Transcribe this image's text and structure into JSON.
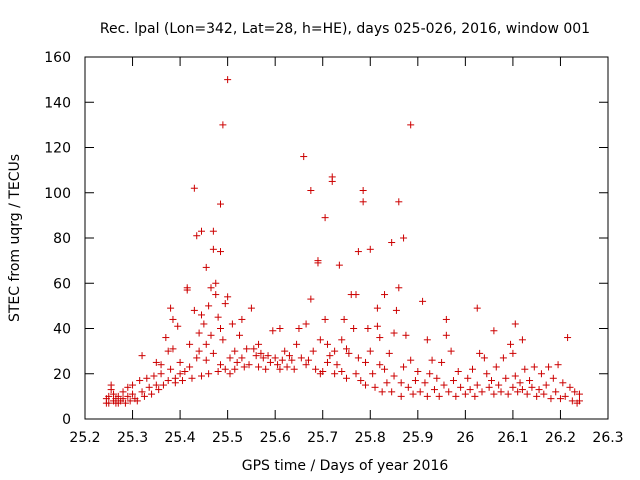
{
  "chart_data": {
    "type": "scatter",
    "title": "Rec. lpal (Lon=342, Lat=28, h=HE), days 025-026, 2016, window 001",
    "xlabel": "GPS time / Days of year 2016",
    "ylabel": "STEC from uqrg / TECUs",
    "xlim": [
      25.2,
      26.3
    ],
    "ylim": [
      0,
      160
    ],
    "xticks": [
      25.2,
      25.3,
      25.4,
      25.5,
      25.6,
      25.7,
      25.8,
      25.9,
      26,
      26.1,
      26.2,
      26.3
    ],
    "xtick_labels": [
      "25.2",
      "25.3",
      "25.4",
      "25.5",
      "25.6",
      "25.7",
      "25.8",
      "25.9",
      "26",
      "26.1",
      "26.2",
      "26.3"
    ],
    "yticks": [
      0,
      20,
      40,
      60,
      80,
      100,
      120,
      140,
      160
    ],
    "ytick_labels": [
      "0",
      "20",
      "40",
      "60",
      "80",
      "100",
      "120",
      "140",
      "160"
    ],
    "grid": false,
    "marker": "+",
    "series": [
      {
        "name": "STEC",
        "color": "#cc0000",
        "points": [
          [
            25.245,
            7
          ],
          [
            25.245,
            9
          ],
          [
            25.25,
            10
          ],
          [
            25.25,
            7
          ],
          [
            25.255,
            13
          ],
          [
            25.255,
            15
          ],
          [
            25.26,
            8
          ],
          [
            25.26,
            11
          ],
          [
            25.265,
            7
          ],
          [
            25.265,
            9
          ],
          [
            25.27,
            10
          ],
          [
            25.27,
            7
          ],
          [
            25.275,
            8
          ],
          [
            25.28,
            12
          ],
          [
            25.28,
            9
          ],
          [
            25.285,
            7
          ],
          [
            25.29,
            14
          ],
          [
            25.29,
            10
          ],
          [
            25.295,
            8
          ],
          [
            25.3,
            15
          ],
          [
            25.3,
            11
          ],
          [
            25.305,
            9
          ],
          [
            25.31,
            8
          ],
          [
            25.315,
            17
          ],
          [
            25.32,
            28
          ],
          [
            25.32,
            12
          ],
          [
            25.325,
            10
          ],
          [
            25.33,
            18
          ],
          [
            25.335,
            14
          ],
          [
            25.34,
            11
          ],
          [
            25.345,
            19
          ],
          [
            25.35,
            25
          ],
          [
            25.35,
            15
          ],
          [
            25.355,
            13
          ],
          [
            25.36,
            24
          ],
          [
            25.36,
            20
          ],
          [
            25.365,
            15
          ],
          [
            25.37,
            36
          ],
          [
            25.375,
            30
          ],
          [
            25.375,
            17
          ],
          [
            25.38,
            49
          ],
          [
            25.38,
            22
          ],
          [
            25.385,
            44
          ],
          [
            25.385,
            31
          ],
          [
            25.39,
            18
          ],
          [
            25.39,
            16
          ],
          [
            25.395,
            41
          ],
          [
            25.4,
            25
          ],
          [
            25.4,
            20
          ],
          [
            25.405,
            17
          ],
          [
            25.41,
            21
          ],
          [
            25.415,
            58
          ],
          [
            25.415,
            57
          ],
          [
            25.42,
            33
          ],
          [
            25.42,
            23
          ],
          [
            25.425,
            18
          ],
          [
            25.43,
            102
          ],
          [
            25.43,
            48
          ],
          [
            25.435,
            81
          ],
          [
            25.435,
            27
          ],
          [
            25.44,
            38
          ],
          [
            25.44,
            30
          ],
          [
            25.445,
            83
          ],
          [
            25.445,
            46
          ],
          [
            25.445,
            19
          ],
          [
            25.45,
            42
          ],
          [
            25.455,
            67
          ],
          [
            25.455,
            33
          ],
          [
            25.455,
            26
          ],
          [
            25.46,
            50
          ],
          [
            25.46,
            20
          ],
          [
            25.465,
            58
          ],
          [
            25.465,
            37
          ],
          [
            25.47,
            75
          ],
          [
            25.47,
            83
          ],
          [
            25.47,
            29
          ],
          [
            25.475,
            60
          ],
          [
            25.475,
            55
          ],
          [
            25.48,
            21
          ],
          [
            25.48,
            45
          ],
          [
            25.485,
            95
          ],
          [
            25.485,
            74
          ],
          [
            25.485,
            40
          ],
          [
            25.485,
            24
          ],
          [
            25.49,
            130
          ],
          [
            25.49,
            35
          ],
          [
            25.495,
            51
          ],
          [
            25.495,
            22
          ],
          [
            25.5,
            150
          ],
          [
            25.5,
            54
          ],
          [
            25.505,
            27
          ],
          [
            25.505,
            20
          ],
          [
            25.51,
            42
          ],
          [
            25.515,
            30
          ],
          [
            25.515,
            22
          ],
          [
            25.52,
            25
          ],
          [
            25.525,
            37
          ],
          [
            25.53,
            44
          ],
          [
            25.53,
            27
          ],
          [
            25.535,
            23
          ],
          [
            25.54,
            31
          ],
          [
            25.545,
            24
          ],
          [
            25.55,
            49
          ],
          [
            25.555,
            31
          ],
          [
            25.56,
            28
          ],
          [
            25.565,
            33
          ],
          [
            25.565,
            23
          ],
          [
            25.57,
            29
          ],
          [
            25.575,
            27
          ],
          [
            25.58,
            22
          ],
          [
            25.585,
            28
          ],
          [
            25.59,
            25
          ],
          [
            25.595,
            39
          ],
          [
            25.6,
            27
          ],
          [
            25.605,
            24
          ],
          [
            25.61,
            40
          ],
          [
            25.61,
            22
          ],
          [
            25.615,
            26
          ],
          [
            25.62,
            30
          ],
          [
            25.625,
            23
          ],
          [
            25.63,
            28
          ],
          [
            25.635,
            26
          ],
          [
            25.64,
            22
          ],
          [
            25.645,
            33
          ],
          [
            25.65,
            40
          ],
          [
            25.655,
            27
          ],
          [
            25.66,
            116
          ],
          [
            25.665,
            42
          ],
          [
            25.665,
            24
          ],
          [
            25.67,
            26
          ],
          [
            25.675,
            101
          ],
          [
            25.675,
            53
          ],
          [
            25.68,
            30
          ],
          [
            25.685,
            22
          ],
          [
            25.69,
            70
          ],
          [
            25.69,
            69
          ],
          [
            25.695,
            35
          ],
          [
            25.695,
            20
          ],
          [
            25.7,
            21
          ],
          [
            25.705,
            89
          ],
          [
            25.705,
            44
          ],
          [
            25.71,
            33
          ],
          [
            25.71,
            25
          ],
          [
            25.715,
            28
          ],
          [
            25.72,
            107
          ],
          [
            25.72,
            105
          ],
          [
            25.725,
            30
          ],
          [
            25.725,
            20
          ],
          [
            25.73,
            24
          ],
          [
            25.735,
            68
          ],
          [
            25.74,
            35
          ],
          [
            25.74,
            21
          ],
          [
            25.745,
            44
          ],
          [
            25.75,
            31
          ],
          [
            25.75,
            18
          ],
          [
            25.755,
            29
          ],
          [
            25.76,
            55
          ],
          [
            25.765,
            40
          ],
          [
            25.77,
            55
          ],
          [
            25.77,
            20
          ],
          [
            25.775,
            74
          ],
          [
            25.775,
            27
          ],
          [
            25.78,
            17
          ],
          [
            25.785,
            101
          ],
          [
            25.785,
            96
          ],
          [
            25.79,
            25
          ],
          [
            25.79,
            15
          ],
          [
            25.795,
            40
          ],
          [
            25.8,
            75
          ],
          [
            25.8,
            30
          ],
          [
            25.805,
            20
          ],
          [
            25.81,
            14
          ],
          [
            25.815,
            49
          ],
          [
            25.815,
            41
          ],
          [
            25.82,
            36
          ],
          [
            25.82,
            24
          ],
          [
            25.825,
            12
          ],
          [
            25.83,
            55
          ],
          [
            25.83,
            22
          ],
          [
            25.835,
            16
          ],
          [
            25.84,
            29
          ],
          [
            25.845,
            78
          ],
          [
            25.845,
            12
          ],
          [
            25.85,
            38
          ],
          [
            25.85,
            19
          ],
          [
            25.855,
            48
          ],
          [
            25.86,
            96
          ],
          [
            25.86,
            58
          ],
          [
            25.865,
            16
          ],
          [
            25.865,
            10
          ],
          [
            25.87,
            80
          ],
          [
            25.87,
            23
          ],
          [
            25.875,
            37
          ],
          [
            25.88,
            14
          ],
          [
            25.885,
            130
          ],
          [
            25.885,
            26
          ],
          [
            25.89,
            11
          ],
          [
            25.895,
            17
          ],
          [
            25.9,
            21
          ],
          [
            25.905,
            12
          ],
          [
            25.91,
            52
          ],
          [
            25.915,
            16
          ],
          [
            25.92,
            35
          ],
          [
            25.92,
            10
          ],
          [
            25.925,
            20
          ],
          [
            25.93,
            26
          ],
          [
            25.935,
            13
          ],
          [
            25.94,
            18
          ],
          [
            25.945,
            10
          ],
          [
            25.95,
            25
          ],
          [
            25.955,
            15
          ],
          [
            25.96,
            44
          ],
          [
            25.96,
            37
          ],
          [
            25.965,
            12
          ],
          [
            25.97,
            30
          ],
          [
            25.975,
            17
          ],
          [
            25.98,
            10
          ],
          [
            25.985,
            21
          ],
          [
            25.99,
            14
          ],
          [
            26.0,
            11
          ],
          [
            26.005,
            18
          ],
          [
            26.01,
            13
          ],
          [
            26.015,
            22
          ],
          [
            26.02,
            10
          ],
          [
            26.025,
            49
          ],
          [
            26.025,
            15
          ],
          [
            26.03,
            29
          ],
          [
            26.035,
            12
          ],
          [
            26.04,
            27
          ],
          [
            26.045,
            20
          ],
          [
            26.05,
            14
          ],
          [
            26.055,
            17
          ],
          [
            26.06,
            39
          ],
          [
            26.06,
            11
          ],
          [
            26.065,
            23
          ],
          [
            26.07,
            15
          ],
          [
            26.075,
            12
          ],
          [
            26.08,
            27
          ],
          [
            26.085,
            18
          ],
          [
            26.09,
            11
          ],
          [
            26.095,
            33
          ],
          [
            26.1,
            14
          ],
          [
            26.1,
            29
          ],
          [
            26.105,
            42
          ],
          [
            26.105,
            19
          ],
          [
            26.11,
            12
          ],
          [
            26.115,
            16
          ],
          [
            26.12,
            35
          ],
          [
            26.12,
            13
          ],
          [
            26.125,
            22
          ],
          [
            26.13,
            11
          ],
          [
            26.135,
            17
          ],
          [
            26.14,
            14
          ],
          [
            26.145,
            23
          ],
          [
            26.15,
            10
          ],
          [
            26.155,
            13
          ],
          [
            26.16,
            20
          ],
          [
            26.165,
            11
          ],
          [
            26.17,
            15
          ],
          [
            26.175,
            23
          ],
          [
            26.18,
            9
          ],
          [
            26.185,
            18
          ],
          [
            26.19,
            12
          ],
          [
            26.195,
            24
          ],
          [
            26.2,
            9
          ],
          [
            26.205,
            16
          ],
          [
            26.21,
            10
          ],
          [
            26.215,
            36
          ],
          [
            26.22,
            14
          ],
          [
            26.225,
            8
          ],
          [
            26.23,
            12
          ],
          [
            26.235,
            7
          ],
          [
            26.24,
            11
          ],
          [
            26.24,
            8
          ]
        ]
      }
    ]
  }
}
